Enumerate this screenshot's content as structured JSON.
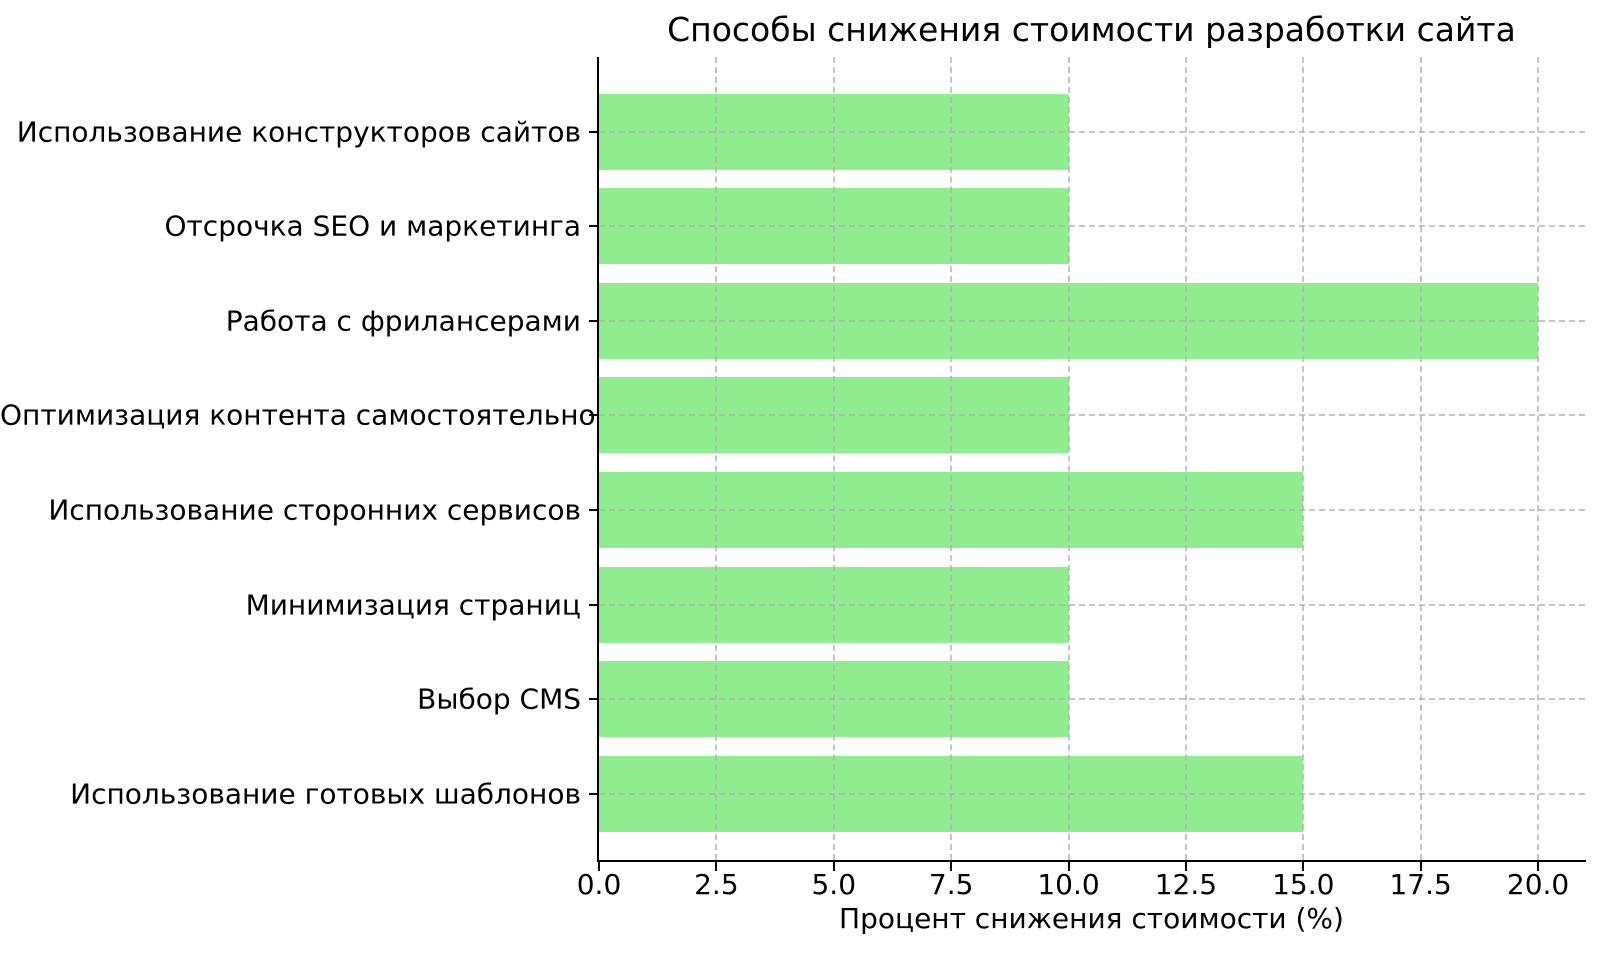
{
  "chart_data": {
    "type": "bar",
    "orientation": "horizontal",
    "title": "Способы снижения стоимости разработки сайта",
    "xlabel": "Процент снижения стоимости (%)",
    "ylabel": "",
    "categories": [
      "Использование конструкторов сайтов",
      "Отсрочка SEO и маркетинга",
      "Работа с фрилансерами",
      "Оптимизация контента самостоятельно",
      "Использование сторонних сервисов",
      "Минимизация страниц",
      "Выбор CMS",
      "Использование готовых шаблонов"
    ],
    "values": [
      10,
      10,
      20,
      10,
      15,
      10,
      10,
      15
    ],
    "xlim": [
      0,
      21
    ],
    "xticks": [
      0,
      2.5,
      5,
      7.5,
      10,
      12.5,
      15,
      17.5,
      20
    ],
    "xtick_labels": [
      "0.0",
      "2.5",
      "5.0",
      "7.5",
      "10.0",
      "12.5",
      "15.0",
      "17.5",
      "20.0"
    ],
    "grid": true,
    "grid_linestyle": "dashed",
    "legend_position": "none",
    "colors": {
      "bar": "#90EE90",
      "grid": "#b0b0b0",
      "spine": "#000000",
      "text": "#000000",
      "background": "#ffffff"
    }
  }
}
